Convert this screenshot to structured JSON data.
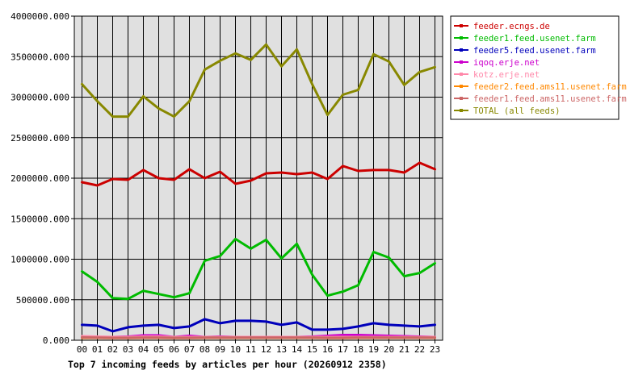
{
  "chart_data": {
    "type": "line",
    "title": "Top 7 incoming feeds by articles per hour (20260912 2358)",
    "xlabel": "",
    "ylabel": "",
    "ylim": [
      0,
      4000000
    ],
    "yticks": [
      "0.000",
      "500000.000",
      "1000000.000",
      "1500000.000",
      "2000000.000",
      "2500000.000",
      "3000000.000",
      "3500000.000",
      "4000000.000"
    ],
    "ytick_values": [
      0,
      500000,
      1000000,
      1500000,
      2000000,
      2500000,
      3000000,
      3500000,
      4000000
    ],
    "categories": [
      "00",
      "01",
      "02",
      "03",
      "04",
      "05",
      "06",
      "07",
      "08",
      "09",
      "10",
      "11",
      "12",
      "13",
      "14",
      "15",
      "16",
      "17",
      "18",
      "19",
      "20",
      "21",
      "22",
      "23"
    ],
    "grid": true,
    "legend_position": "right",
    "series": [
      {
        "name": "feeder.ecngs.de",
        "color": "#cc0000",
        "values": [
          1950000,
          1910000,
          1990000,
          1980000,
          2100000,
          2000000,
          1980000,
          2110000,
          2000000,
          2080000,
          1930000,
          1970000,
          2060000,
          2070000,
          2050000,
          2070000,
          1990000,
          2150000,
          2090000,
          2100000,
          2100000,
          2070000,
          2190000,
          2110000
        ]
      },
      {
        "name": "feeder1.feed.usenet.farm",
        "color": "#00bb00",
        "values": [
          850000,
          720000,
          520000,
          510000,
          610000,
          570000,
          530000,
          580000,
          980000,
          1040000,
          1250000,
          1130000,
          1240000,
          1010000,
          1190000,
          810000,
          550000,
          600000,
          680000,
          1090000,
          1020000,
          790000,
          830000,
          950000
        ]
      },
      {
        "name": "feeder5.feed.usenet.farm",
        "color": "#0000bb",
        "values": [
          190000,
          180000,
          110000,
          160000,
          180000,
          190000,
          150000,
          170000,
          260000,
          210000,
          240000,
          240000,
          230000,
          190000,
          220000,
          130000,
          130000,
          140000,
          170000,
          210000,
          190000,
          180000,
          170000,
          190000
        ]
      },
      {
        "name": "iqoq.erje.net",
        "color": "#cc00cc",
        "values": [
          40000,
          35000,
          40000,
          45000,
          60000,
          60000,
          40000,
          55000,
          40000,
          45000,
          40000,
          40000,
          40000,
          40000,
          40000,
          45000,
          55000,
          65000,
          65000,
          60000,
          55000,
          50000,
          45000,
          40000
        ]
      },
      {
        "name": "kotz.erje.net",
        "color": "#ff88aa",
        "values": [
          50000,
          45000,
          40000,
          40000,
          45000,
          45000,
          40000,
          40000,
          40000,
          40000,
          40000,
          40000,
          40000,
          40000,
          40000,
          40000,
          40000,
          40000,
          40000,
          40000,
          40000,
          40000,
          40000,
          40000
        ]
      },
      {
        "name": "feeder2.feed.ams11.usenet.farm",
        "color": "#ff8800",
        "values": [
          30000,
          30000,
          28000,
          28000,
          30000,
          30000,
          28000,
          28000,
          30000,
          30000,
          30000,
          30000,
          30000,
          30000,
          30000,
          30000,
          28000,
          28000,
          30000,
          30000,
          30000,
          30000,
          30000,
          30000
        ]
      },
      {
        "name": "feeder1.feed.ams11.usenet.farm",
        "color": "#cc6666",
        "values": [
          35000,
          32000,
          30000,
          30000,
          32000,
          32000,
          30000,
          30000,
          32000,
          32000,
          32000,
          32000,
          32000,
          32000,
          32000,
          32000,
          30000,
          30000,
          32000,
          32000,
          32000,
          32000,
          32000,
          32000
        ]
      },
      {
        "name": "TOTAL (all feeds)",
        "color": "#888800",
        "values": [
          3160000,
          2950000,
          2760000,
          2760000,
          3010000,
          2860000,
          2760000,
          2950000,
          3340000,
          3450000,
          3540000,
          3460000,
          3650000,
          3380000,
          3590000,
          3160000,
          2780000,
          3030000,
          3090000,
          3530000,
          3440000,
          3150000,
          3310000,
          3370000
        ]
      }
    ]
  }
}
